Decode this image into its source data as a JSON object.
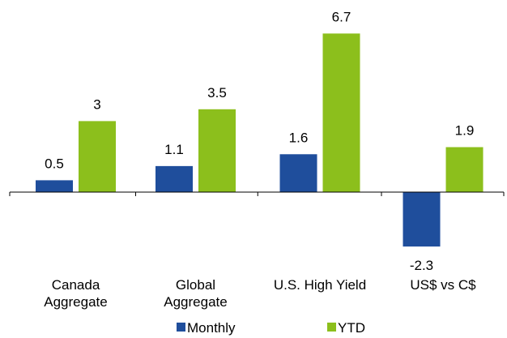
{
  "chart_data": {
    "type": "bar",
    "categories": [
      [
        "Canada",
        "Aggregate"
      ],
      [
        "Global",
        "Aggregate"
      ],
      [
        "U.S. High Yield"
      ],
      [
        "US$ vs C$"
      ]
    ],
    "series": [
      {
        "name": "Monthly",
        "color": "#1f4e9c",
        "values": [
          0.5,
          1.1,
          1.6,
          -2.3
        ]
      },
      {
        "name": "YTD",
        "color": "#8cbf1c",
        "values": [
          3,
          3.5,
          6.7,
          1.9
        ]
      }
    ],
    "data_labels": [
      [
        "0.5",
        "1.1",
        "1.6",
        "-2.3"
      ],
      [
        "3",
        "3.5",
        "6.7",
        "1.9"
      ]
    ],
    "ylim": [
      -2.3,
      6.7
    ],
    "grid": false,
    "legend_position": "bottom",
    "title": "",
    "xlabel": "",
    "ylabel": ""
  }
}
